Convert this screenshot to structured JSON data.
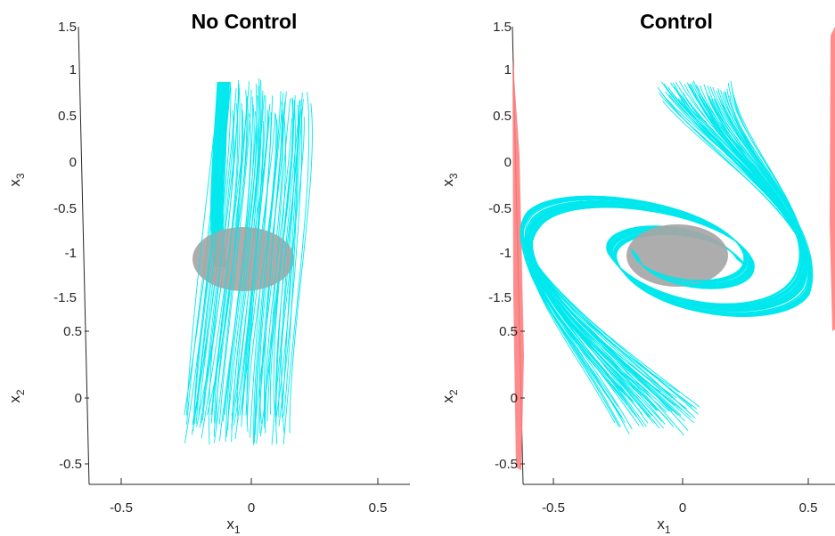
{
  "chart_data": [
    {
      "type": "line",
      "title": "No Control",
      "xlabel": "x1",
      "ylabel": "x2",
      "zlabel": "x3",
      "x_ticks": [
        "-0.5",
        "0",
        "0.5"
      ],
      "y_ticks": [
        "0.5",
        "0",
        "-0.5"
      ],
      "z_ticks": [
        "1.5",
        "1",
        "0.5",
        "0",
        "-0.5",
        "-1",
        "-1.5"
      ],
      "xlim": [
        -0.65,
        0.65
      ],
      "ylim": [
        -0.6,
        0.6
      ],
      "zlim": [
        -1.5,
        1.5
      ],
      "series": [
        {
          "description": "trajectory bundle",
          "color": "#00ffff"
        },
        {
          "description": "target ellipsoid",
          "color": "#a0a0a0"
        }
      ]
    },
    {
      "type": "line",
      "title": "Control",
      "xlabel": "x1",
      "ylabel": "x2",
      "zlabel": "x3",
      "x_ticks": [
        "-0.5",
        "0",
        "0.5"
      ],
      "y_ticks": [
        "0.5",
        "0",
        "-0.5"
      ],
      "z_ticks": [
        "1.5",
        "1",
        "0.5",
        "0",
        "-0.5",
        "-1",
        "-1.5"
      ],
      "xlim": [
        -0.65,
        0.65
      ],
      "ylim": [
        -0.6,
        0.6
      ],
      "zlim": [
        -1.5,
        1.5
      ],
      "series": [
        {
          "description": "trajectory bundle",
          "color": "#00ffff"
        },
        {
          "description": "target ellipsoid",
          "color": "#a0a0a0"
        },
        {
          "description": "constraint boundary",
          "color": "#ff8080"
        }
      ]
    }
  ]
}
